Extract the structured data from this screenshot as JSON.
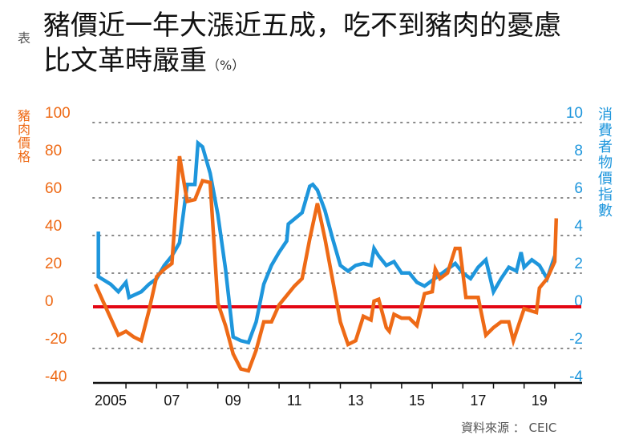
{
  "header": {
    "tag": "表",
    "title_line1": "豬價近一年大漲近五成，吃不到豬肉的憂慮",
    "title_line2": "比文革時嚴重",
    "unit": "（%）"
  },
  "source": "資料來源 ： CEIC",
  "colors": {
    "pork": "#ee6a16",
    "cpi": "#1e96dc",
    "zero_line": "#e30613",
    "axis": "#111111",
    "grid": "#888888"
  },
  "chart_data": {
    "type": "line",
    "title": "豬價近一年大漲近五成，吃不到豬肉的憂慮比文革時嚴重（%）",
    "xlabel": "",
    "ylabel_left": "豬肉價格",
    "ylabel_right": "消費者物價指數",
    "xlim": [
      2004,
      2020.5
    ],
    "ylim_left": [
      -40,
      100
    ],
    "ylim_right": [
      -4,
      10
    ],
    "grid": true,
    "x_tick_labels": [
      "2005",
      "07",
      "09",
      "11",
      "13",
      "15",
      "17",
      "19"
    ],
    "x_tick_values": [
      2005,
      2007,
      2009,
      2011,
      2013,
      2015,
      2017,
      2019
    ],
    "y_left_ticks": [
      "100",
      "80",
      "60",
      "40",
      "20",
      "0",
      "-20",
      "-40"
    ],
    "y_right_ticks": [
      "10",
      "8",
      "6",
      "4",
      "2",
      "0",
      "-2",
      "-4"
    ],
    "series": [
      {
        "name": "豬肉價格",
        "axis": "left",
        "points": [
          [
            2004.5,
            12
          ],
          [
            2004.75,
            3
          ],
          [
            2005.0,
            -6
          ],
          [
            2005.25,
            -15
          ],
          [
            2005.5,
            -13
          ],
          [
            2005.75,
            -16
          ],
          [
            2006.0,
            -18
          ],
          [
            2006.25,
            -2
          ],
          [
            2006.5,
            16
          ],
          [
            2006.75,
            20
          ],
          [
            2007.0,
            23
          ],
          [
            2007.25,
            80
          ],
          [
            2007.5,
            56
          ],
          [
            2007.75,
            57
          ],
          [
            2008.0,
            67
          ],
          [
            2008.25,
            66
          ],
          [
            2008.5,
            2
          ],
          [
            2008.75,
            -10
          ],
          [
            2009.0,
            -25
          ],
          [
            2009.25,
            -33
          ],
          [
            2009.5,
            -34
          ],
          [
            2009.75,
            -23
          ],
          [
            2010.0,
            -8
          ],
          [
            2010.25,
            -8
          ],
          [
            2010.5,
            1
          ],
          [
            2010.75,
            6
          ],
          [
            2011.0,
            11
          ],
          [
            2011.25,
            15
          ],
          [
            2011.5,
            36
          ],
          [
            2011.75,
            55
          ],
          [
            2012.0,
            36
          ],
          [
            2012.25,
            14
          ],
          [
            2012.5,
            -8
          ],
          [
            2012.75,
            -20
          ],
          [
            2013.0,
            -18
          ],
          [
            2013.25,
            -5
          ],
          [
            2013.5,
            -7
          ],
          [
            2013.6,
            3
          ],
          [
            2013.75,
            4
          ],
          [
            2014.0,
            -11
          ],
          [
            2014.1,
            -13
          ],
          [
            2014.25,
            -4
          ],
          [
            2014.5,
            -6
          ],
          [
            2014.75,
            -6
          ],
          [
            2015.0,
            -10
          ],
          [
            2015.25,
            7
          ],
          [
            2015.5,
            8
          ],
          [
            2015.6,
            20
          ],
          [
            2015.75,
            15
          ],
          [
            2016.0,
            18
          ],
          [
            2016.25,
            31
          ],
          [
            2016.4,
            31
          ],
          [
            2016.6,
            5
          ],
          [
            2016.75,
            5
          ],
          [
            2017.0,
            5
          ],
          [
            2017.25,
            -15
          ],
          [
            2017.5,
            -11
          ],
          [
            2017.75,
            -8
          ],
          [
            2018.0,
            -8
          ],
          [
            2018.15,
            -18
          ],
          [
            2018.5,
            -1
          ],
          [
            2018.9,
            -3
          ],
          [
            2019.0,
            10
          ],
          [
            2019.25,
            15
          ],
          [
            2019.5,
            24
          ],
          [
            2019.55,
            47
          ]
        ]
      },
      {
        "name": "消費者物價指數",
        "axis": "right",
        "points": [
          [
            2004.6,
            4.0
          ],
          [
            2004.6,
            1.6
          ],
          [
            2005.0,
            1.2
          ],
          [
            2005.25,
            0.8
          ],
          [
            2005.5,
            1.3
          ],
          [
            2005.6,
            0.5
          ],
          [
            2006.0,
            0.8
          ],
          [
            2006.25,
            1.2
          ],
          [
            2006.5,
            1.5
          ],
          [
            2006.75,
            2.2
          ],
          [
            2007.0,
            2.7
          ],
          [
            2007.25,
            3.4
          ],
          [
            2007.5,
            6.5
          ],
          [
            2007.75,
            6.5
          ],
          [
            2007.85,
            8.7
          ],
          [
            2008.0,
            8.5
          ],
          [
            2008.25,
            7.1
          ],
          [
            2008.5,
            4.9
          ],
          [
            2008.75,
            2.0
          ],
          [
            2009.0,
            -1.6
          ],
          [
            2009.25,
            -1.8
          ],
          [
            2009.5,
            -1.9
          ],
          [
            2009.75,
            -0.8
          ],
          [
            2010.0,
            1.2
          ],
          [
            2010.25,
            2.2
          ],
          [
            2010.5,
            2.9
          ],
          [
            2010.75,
            3.5
          ],
          [
            2010.8,
            4.4
          ],
          [
            2011.25,
            5.0
          ],
          [
            2011.5,
            6.4
          ],
          [
            2011.6,
            6.5
          ],
          [
            2011.75,
            6.2
          ],
          [
            2012.0,
            5.1
          ],
          [
            2012.25,
            3.6
          ],
          [
            2012.5,
            2.2
          ],
          [
            2012.75,
            1.9
          ],
          [
            2013.0,
            2.2
          ],
          [
            2013.25,
            2.3
          ],
          [
            2013.5,
            2.2
          ],
          [
            2013.6,
            3.1
          ],
          [
            2013.75,
            2.7
          ],
          [
            2014.0,
            2.2
          ],
          [
            2014.25,
            2.4
          ],
          [
            2014.5,
            1.8
          ],
          [
            2014.75,
            1.8
          ],
          [
            2015.0,
            1.3
          ],
          [
            2015.25,
            1.1
          ],
          [
            2015.5,
            1.4
          ],
          [
            2015.75,
            1.7
          ],
          [
            2016.0,
            2.0
          ],
          [
            2016.25,
            2.3
          ],
          [
            2016.5,
            1.8
          ],
          [
            2016.75,
            1.5
          ],
          [
            2017.0,
            2.1
          ],
          [
            2017.25,
            2.5
          ],
          [
            2017.5,
            0.8
          ],
          [
            2017.75,
            1.5
          ],
          [
            2018.0,
            2.1
          ],
          [
            2018.25,
            1.9
          ],
          [
            2018.4,
            2.9
          ],
          [
            2018.5,
            2.1
          ],
          [
            2018.75,
            2.5
          ],
          [
            2019.0,
            2.2
          ],
          [
            2019.25,
            1.5
          ],
          [
            2019.5,
            2.7
          ]
        ]
      },
      {
        "name": "0",
        "axis": "left",
        "points": [
          [
            2004.3,
            0
          ],
          [
            2020.5,
            0
          ]
        ]
      }
    ]
  }
}
